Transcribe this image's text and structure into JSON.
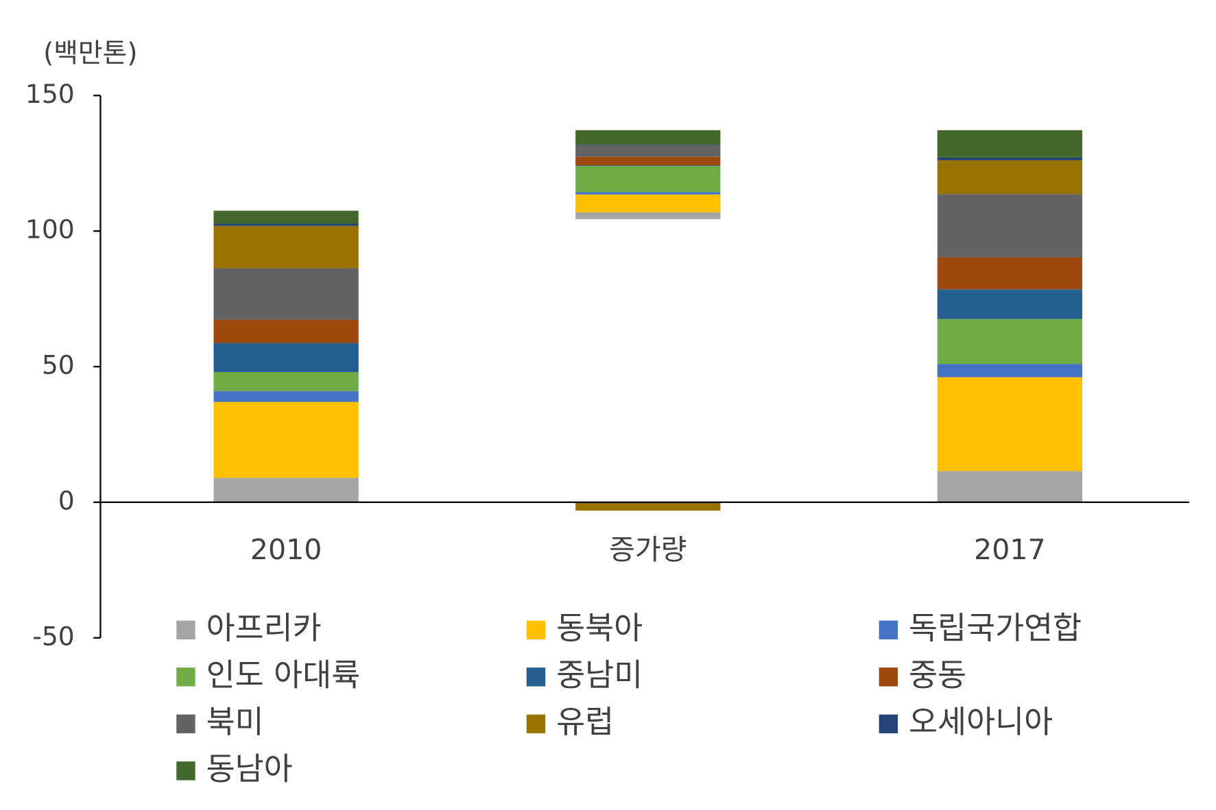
{
  "chart_data": {
    "type": "waterfall",
    "y_label": "(백만톤)",
    "categories": [
      "2010",
      "증가량",
      "2017"
    ],
    "ylim": [
      -50,
      150
    ],
    "yticks": [
      -50,
      0,
      50,
      100,
      150
    ],
    "series": [
      {
        "name": "아프리카",
        "color": "#a5a5a5",
        "values": [
          9,
          2.5,
          11.5
        ]
      },
      {
        "name": "동북아",
        "color": "#ffc000",
        "values": [
          28,
          6.6,
          34.6
        ]
      },
      {
        "name": "독립국가연합",
        "color": "#4472c4",
        "values": [
          4,
          0.9,
          4.9
        ]
      },
      {
        "name": "인도 아대륙",
        "color": "#70ad47",
        "values": [
          7,
          9.6,
          16.6
        ]
      },
      {
        "name": "중남미",
        "color": "#255e91",
        "values": [
          10.7,
          0.2,
          10.9
        ]
      },
      {
        "name": "중동",
        "color": "#9e480e",
        "values": [
          8.6,
          3.2,
          11.8
        ]
      },
      {
        "name": "북미",
        "color": "#636363",
        "values": [
          19,
          4.3,
          23.3
        ]
      },
      {
        "name": "유럽",
        "color": "#997300",
        "values": [
          15.6,
          -3.1,
          12.5
        ]
      },
      {
        "name": "오세아니아",
        "color": "#264478",
        "values": [
          0.8,
          0.2,
          1.0
        ]
      },
      {
        "name": "동남아",
        "color": "#43682b",
        "values": [
          4.8,
          5.3,
          10.1
        ]
      }
    ]
  }
}
